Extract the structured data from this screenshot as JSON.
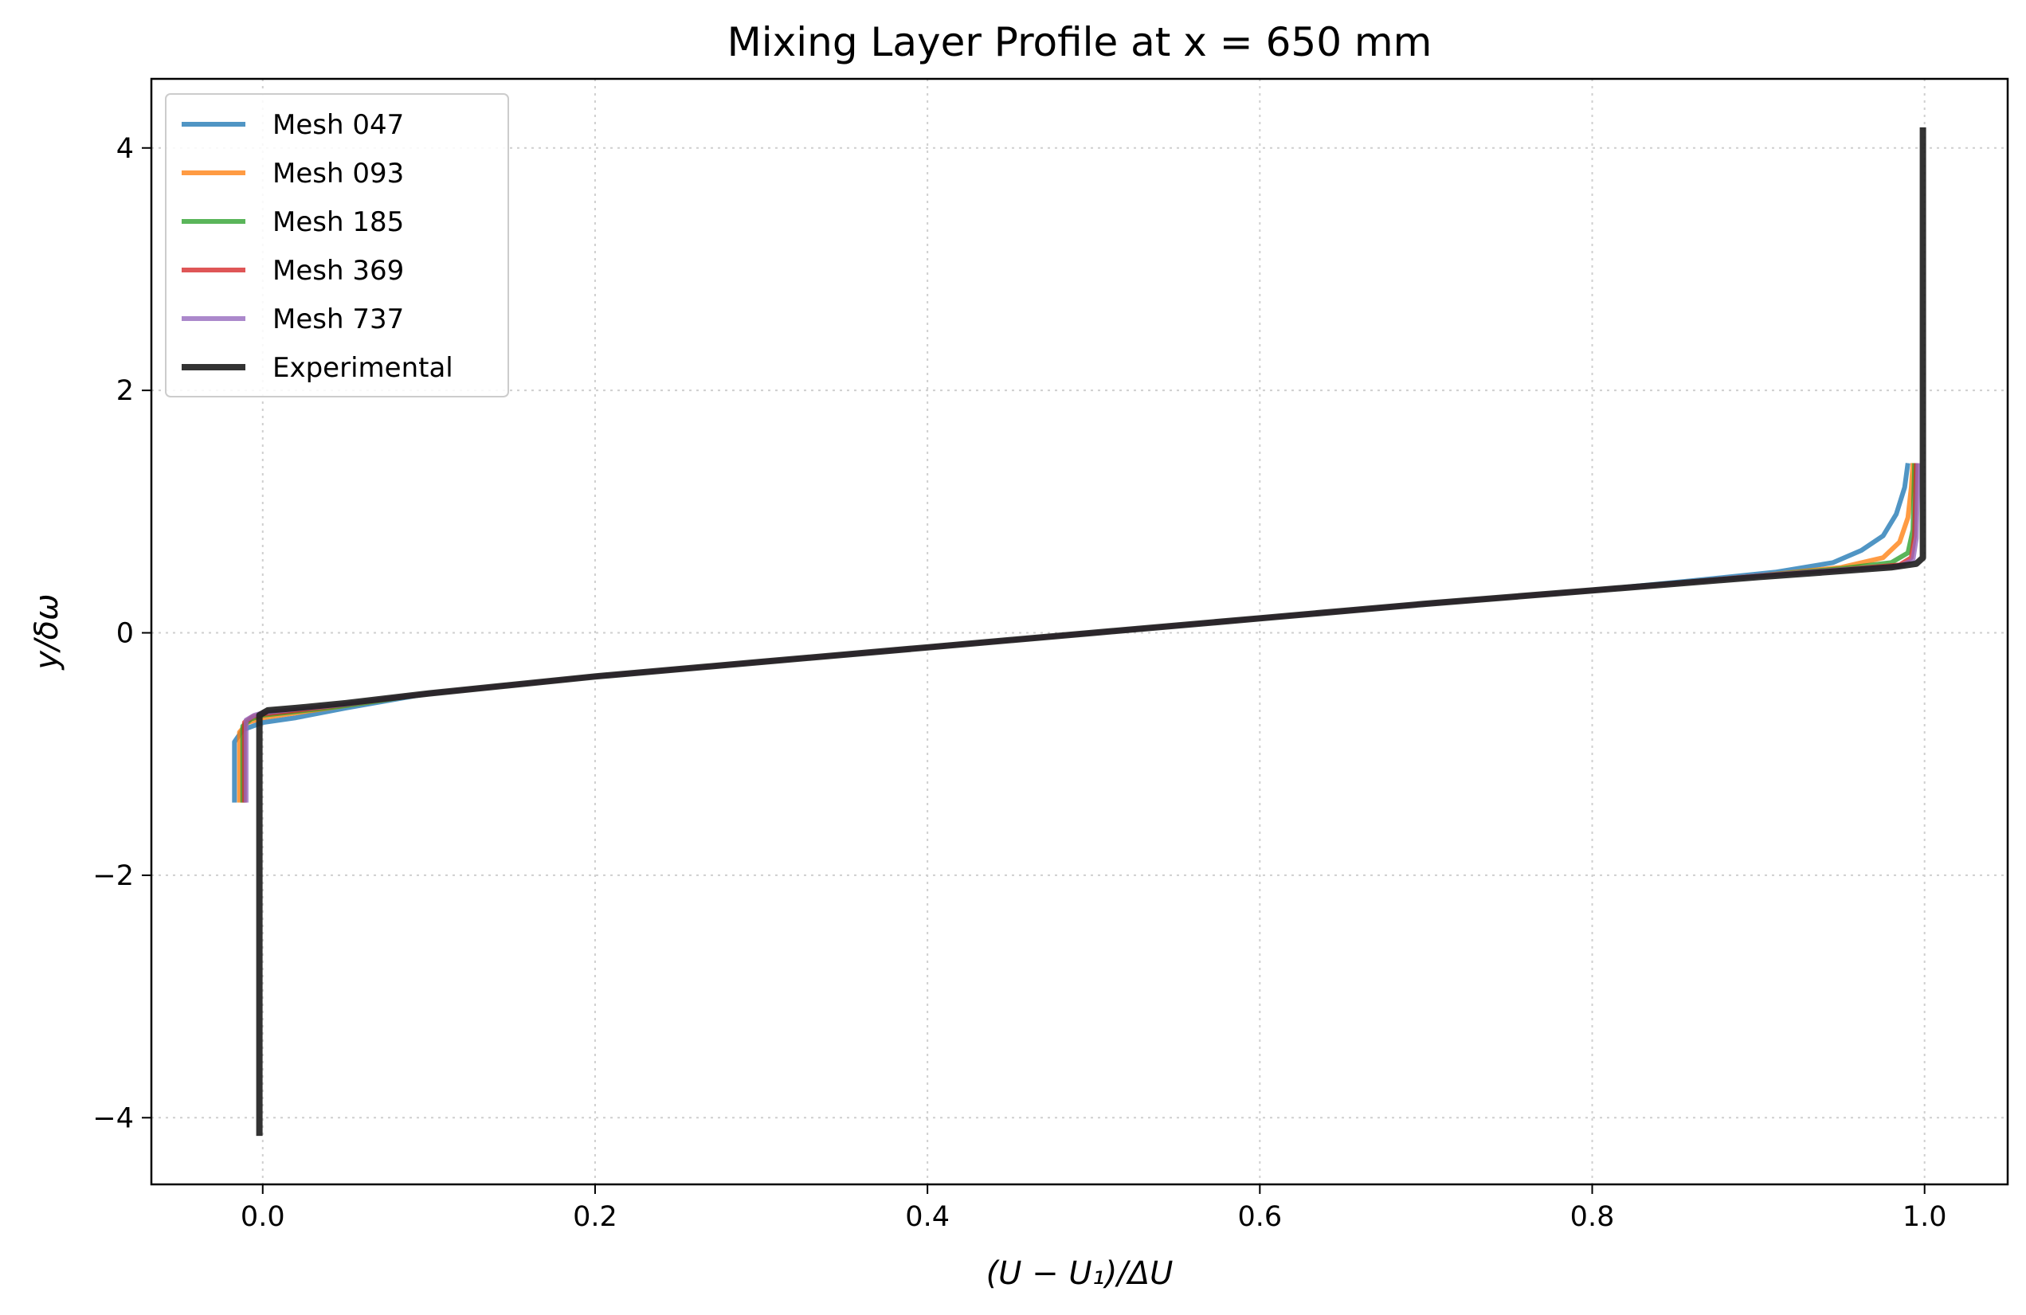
{
  "chart_data": {
    "type": "line",
    "title": "Mixing Layer Profile at x = 650 mm",
    "xlabel": "(U − U₁)/ΔU",
    "ylabel": "y/δω",
    "xlim": [
      -0.067,
      1.05
    ],
    "ylim": [
      -4.55,
      4.57
    ],
    "xticks": [
      0.0,
      0.2,
      0.4,
      0.6,
      0.8,
      1.0
    ],
    "xtick_labels": [
      "0.0",
      "0.2",
      "0.4",
      "0.6",
      "0.8",
      "1.0"
    ],
    "yticks": [
      -4,
      -2,
      0,
      2,
      4
    ],
    "ytick_labels": [
      "−4",
      "−2",
      "0",
      "2",
      "4"
    ],
    "grid": true,
    "legend_position": "top-left",
    "series": [
      {
        "name": "Mesh 047",
        "color": "#1f77b4",
        "points": [
          [
            -0.017,
            -1.4
          ],
          [
            -0.017,
            -0.9
          ],
          [
            -0.012,
            -0.8
          ],
          [
            0.0,
            -0.74
          ],
          [
            0.02,
            -0.7
          ],
          [
            0.05,
            -0.62
          ],
          [
            0.1,
            -0.5
          ],
          [
            0.2,
            -0.36
          ],
          [
            0.3,
            -0.24
          ],
          [
            0.4,
            -0.12
          ],
          [
            0.5,
            0.0
          ],
          [
            0.6,
            0.12
          ],
          [
            0.7,
            0.24
          ],
          [
            0.8,
            0.35
          ],
          [
            0.86,
            0.43
          ],
          [
            0.91,
            0.5
          ],
          [
            0.945,
            0.58
          ],
          [
            0.962,
            0.68
          ],
          [
            0.975,
            0.8
          ],
          [
            0.983,
            0.98
          ],
          [
            0.988,
            1.2
          ],
          [
            0.99,
            1.4
          ]
        ]
      },
      {
        "name": "Mesh 093",
        "color": "#ff7f0e",
        "points": [
          [
            -0.014,
            -1.4
          ],
          [
            -0.014,
            -0.82
          ],
          [
            -0.009,
            -0.74
          ],
          [
            0.0,
            -0.7
          ],
          [
            0.02,
            -0.66
          ],
          [
            0.05,
            -0.6
          ],
          [
            0.1,
            -0.5
          ],
          [
            0.2,
            -0.36
          ],
          [
            0.3,
            -0.24
          ],
          [
            0.4,
            -0.12
          ],
          [
            0.5,
            0.0
          ],
          [
            0.6,
            0.12
          ],
          [
            0.7,
            0.24
          ],
          [
            0.8,
            0.35
          ],
          [
            0.9,
            0.47
          ],
          [
            0.95,
            0.54
          ],
          [
            0.975,
            0.62
          ],
          [
            0.985,
            0.75
          ],
          [
            0.99,
            0.95
          ],
          [
            0.992,
            1.2
          ],
          [
            0.993,
            1.4
          ]
        ]
      },
      {
        "name": "Mesh 185",
        "color": "#2ca02c",
        "points": [
          [
            -0.012,
            -1.4
          ],
          [
            -0.012,
            -0.77
          ],
          [
            -0.007,
            -0.71
          ],
          [
            0.0,
            -0.68
          ],
          [
            0.02,
            -0.65
          ],
          [
            0.05,
            -0.6
          ],
          [
            0.1,
            -0.5
          ],
          [
            0.2,
            -0.36
          ],
          [
            0.3,
            -0.24
          ],
          [
            0.4,
            -0.12
          ],
          [
            0.5,
            0.0
          ],
          [
            0.6,
            0.12
          ],
          [
            0.7,
            0.24
          ],
          [
            0.8,
            0.35
          ],
          [
            0.9,
            0.47
          ],
          [
            0.95,
            0.53
          ],
          [
            0.98,
            0.58
          ],
          [
            0.99,
            0.66
          ],
          [
            0.993,
            0.85
          ],
          [
            0.994,
            1.4
          ]
        ]
      },
      {
        "name": "Mesh 369",
        "color": "#d62728",
        "points": [
          [
            -0.011,
            -1.4
          ],
          [
            -0.011,
            -0.74
          ],
          [
            -0.006,
            -0.69
          ],
          [
            0.0,
            -0.67
          ],
          [
            0.02,
            -0.64
          ],
          [
            0.05,
            -0.59
          ],
          [
            0.1,
            -0.5
          ],
          [
            0.2,
            -0.36
          ],
          [
            0.3,
            -0.24
          ],
          [
            0.4,
            -0.12
          ],
          [
            0.5,
            0.0
          ],
          [
            0.6,
            0.12
          ],
          [
            0.7,
            0.24
          ],
          [
            0.8,
            0.35
          ],
          [
            0.9,
            0.47
          ],
          [
            0.95,
            0.52
          ],
          [
            0.985,
            0.56
          ],
          [
            0.992,
            0.62
          ],
          [
            0.994,
            0.8
          ],
          [
            0.995,
            1.4
          ]
        ]
      },
      {
        "name": "Mesh 737",
        "color": "#9467bd",
        "points": [
          [
            -0.01,
            -1.4
          ],
          [
            -0.01,
            -0.72
          ],
          [
            -0.005,
            -0.68
          ],
          [
            0.0,
            -0.66
          ],
          [
            0.02,
            -0.63
          ],
          [
            0.05,
            -0.59
          ],
          [
            0.1,
            -0.5
          ],
          [
            0.2,
            -0.36
          ],
          [
            0.3,
            -0.24
          ],
          [
            0.4,
            -0.12
          ],
          [
            0.5,
            0.0
          ],
          [
            0.6,
            0.12
          ],
          [
            0.7,
            0.24
          ],
          [
            0.8,
            0.35
          ],
          [
            0.9,
            0.47
          ],
          [
            0.95,
            0.52
          ],
          [
            0.985,
            0.55
          ],
          [
            0.993,
            0.6
          ],
          [
            0.995,
            0.78
          ],
          [
            0.996,
            1.4
          ]
        ]
      },
      {
        "name": "Experimental",
        "color": "#222222",
        "points": [
          [
            -0.002,
            -4.15
          ],
          [
            -0.002,
            -0.68
          ],
          [
            0.003,
            -0.64
          ],
          [
            0.02,
            -0.62
          ],
          [
            0.05,
            -0.58
          ],
          [
            0.1,
            -0.5
          ],
          [
            0.2,
            -0.36
          ],
          [
            0.3,
            -0.24
          ],
          [
            0.4,
            -0.12
          ],
          [
            0.5,
            0.0
          ],
          [
            0.6,
            0.12
          ],
          [
            0.7,
            0.24
          ],
          [
            0.8,
            0.35
          ],
          [
            0.9,
            0.46
          ],
          [
            0.95,
            0.51
          ],
          [
            0.98,
            0.54
          ],
          [
            0.995,
            0.57
          ],
          [
            0.999,
            0.62
          ],
          [
            0.999,
            4.17
          ]
        ]
      }
    ]
  }
}
